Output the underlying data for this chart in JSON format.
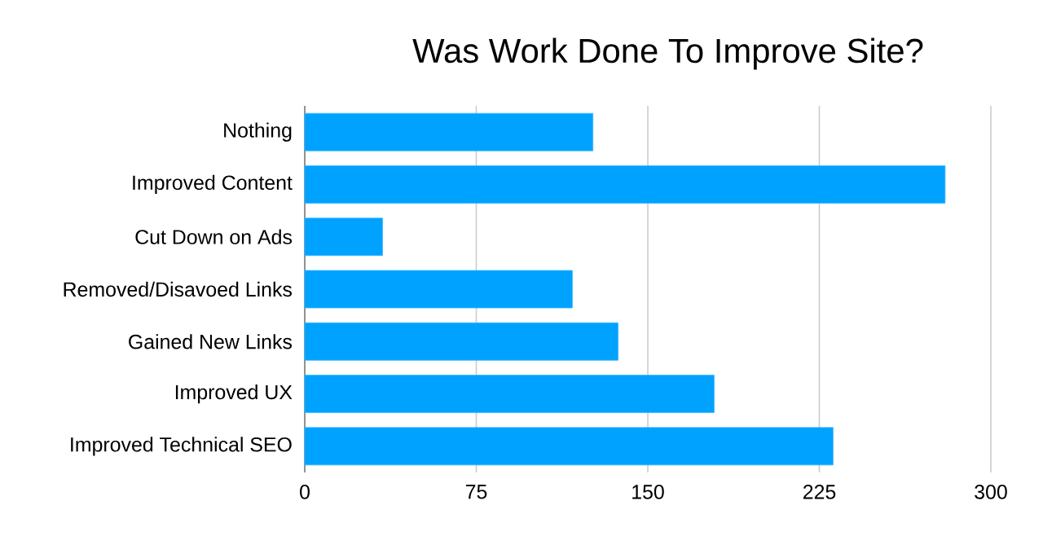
{
  "chart_data": {
    "type": "bar",
    "orientation": "horizontal",
    "title": "Was Work Done To Improve Site?",
    "categories": [
      "Nothing",
      "Improved Content",
      "Cut Down on Ads",
      "Removed/Disavoed Links",
      "Gained New Links",
      "Improved UX",
      "Improved Technical SEO"
    ],
    "values": [
      126,
      280,
      34,
      117,
      137,
      179,
      231
    ],
    "color": "#00a2ff",
    "xlim": [
      0,
      300
    ],
    "xticks": [
      0,
      75,
      150,
      225,
      300
    ],
    "grid": "x"
  }
}
